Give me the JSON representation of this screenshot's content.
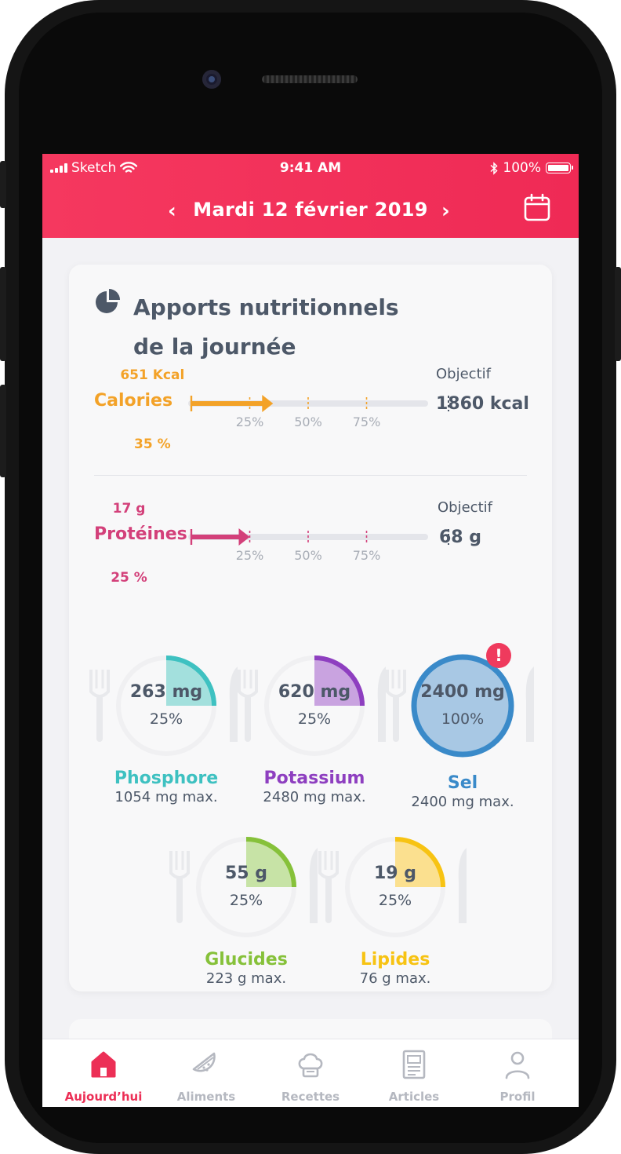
{
  "status_bar": {
    "carrier": "Sketch",
    "time": "9:41 AM",
    "battery": "100%"
  },
  "header": {
    "date": "Mardi 12 février 2019"
  },
  "card": {
    "title": "Apports nutritionnels\nde la journée",
    "bars": [
      {
        "label": "Calories",
        "value_label": "651 Kcal",
        "percent_label": "35 %",
        "fill": 0.35,
        "objective_label": "Objectif",
        "objective_value": "1860 kcal",
        "color": "#f3a228",
        "ticks": [
          "25%",
          "50%",
          "75%"
        ]
      },
      {
        "label": "Protéines",
        "value_label": "17 g",
        "percent_label": "25 %",
        "fill": 0.25,
        "objective_label": "Objectif",
        "objective_value": "68 g",
        "color": "#d3407a",
        "ticks": [
          "25%",
          "50%",
          "75%"
        ]
      }
    ],
    "gauges": [
      {
        "name": "Phosphore",
        "value": "263 mg",
        "percent": "25%",
        "fraction": 0.25,
        "max": "1054 mg max.",
        "color": "#3ec1c1",
        "fill_color": "#a3e0dd",
        "alert": false
      },
      {
        "name": "Potassium",
        "value": "620 mg",
        "percent": "25%",
        "fraction": 0.25,
        "max": "2480 mg max.",
        "color": "#8e3fc0",
        "fill_color": "#c9a3e0",
        "alert": false
      },
      {
        "name": "Sel",
        "value": "2400 mg",
        "percent": "100%",
        "fraction": 1.0,
        "max": "2400 mg max.",
        "color": "#3a8ac9",
        "fill_color": "#a8c8e4",
        "alert": true,
        "alert_symbol": "!"
      },
      {
        "name": "Glucides",
        "value": "55 g",
        "percent": "25%",
        "fraction": 0.25,
        "max": "223 g max.",
        "color": "#86c13a",
        "fill_color": "#c7e3a6",
        "alert": false
      },
      {
        "name": "Lipides",
        "value": "19 g",
        "percent": "25%",
        "fraction": 0.25,
        "max": "76 g max.",
        "color": "#f7c313",
        "fill_color": "#fbe08f",
        "alert": false
      }
    ]
  },
  "tabs": [
    {
      "label": "Aujourd’hui",
      "icon": "home-icon",
      "active": true
    },
    {
      "label": "Aliments",
      "icon": "watermelon-icon",
      "active": false
    },
    {
      "label": "Recettes",
      "icon": "chef-hat-icon",
      "active": false
    },
    {
      "label": "Articles",
      "icon": "article-icon",
      "active": false
    },
    {
      "label": "Profil",
      "icon": "profile-icon",
      "active": false
    }
  ]
}
